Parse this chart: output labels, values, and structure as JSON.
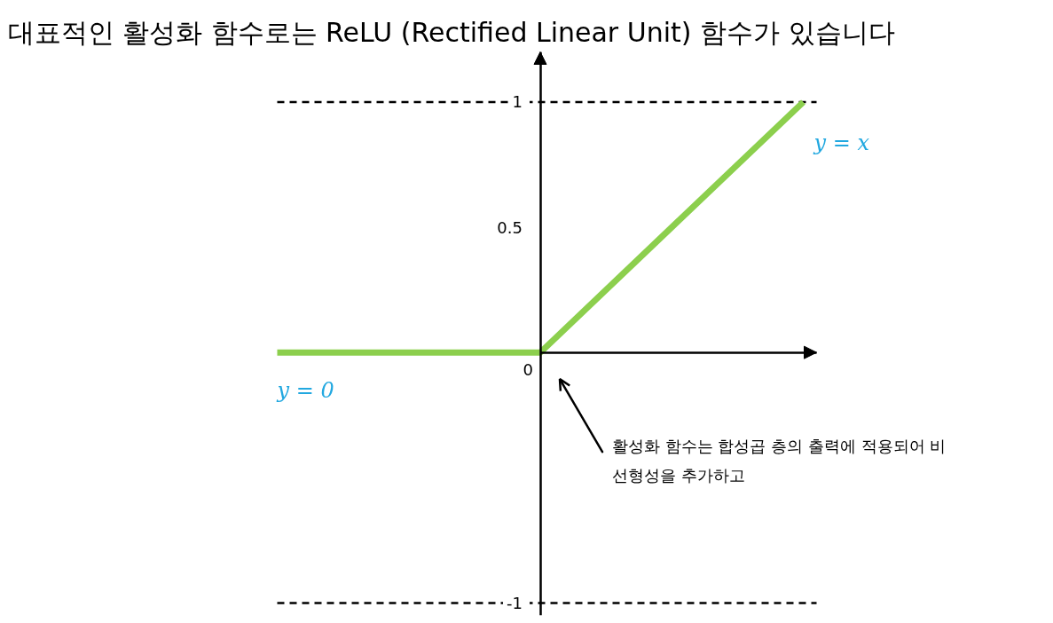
{
  "chart_data": {
    "type": "line",
    "title": "대표적인 활성화 함수로는 ReLU (Rectified Linear Unit) 함수가 있습니다",
    "categories": [
      null,
      null,
      null
    ],
    "series": [
      {
        "color": "#8ccf4d",
        "values": [
          0,
          0,
          1
        ]
      }
    ],
    "ylim": [
      -1.05,
      1.2
    ],
    "yticks": [
      -1,
      0.5,
      1
    ],
    "tick_labels": "y",
    "ref_lines": [
      {
        "axis": "y",
        "value": 1,
        "color": "#000000",
        "line_style": "dashed"
      },
      {
        "axis": "y",
        "value": -1,
        "color": "#000000",
        "line_style": "dashed"
      }
    ],
    "annotations": [
      "y = x",
      "y = 0",
      "0",
      "활성화 함수는 합성곱 층의 출력에 적용되어 비\n선형성을 추가하고"
    ]
  }
}
